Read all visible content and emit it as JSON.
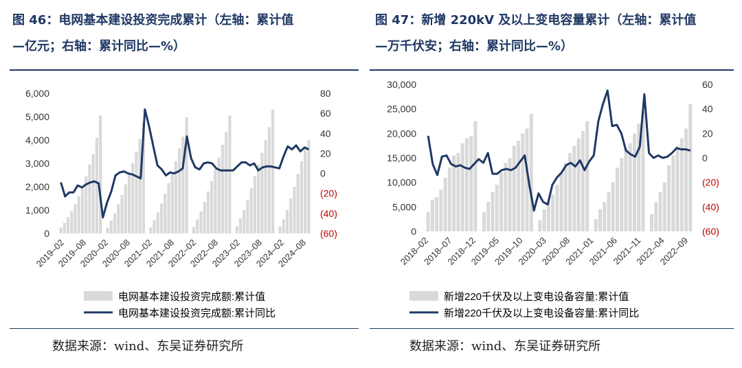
{
  "source_text": "数据来源：wind、东吴证券研究所",
  "charts": [
    {
      "title_line1": "图 46：电网基本建设投资完成累计（左轴：累计值",
      "title_line2": "—亿元；右轴：累计同比—%）"
    },
    {
      "title_line1": "图 47：新增 220kV 及以上变电容量累计（左轴：累计值",
      "title_line2": "—万千伏安；右轴：累计同比—%）"
    }
  ],
  "colors": {
    "bar": "#d9d9d9",
    "line": "#1f3864",
    "negative_tick": "#c00000",
    "title": "#1f3864"
  },
  "chart_data": [
    {
      "type": "bar+line",
      "left_ticks": [
        "0",
        "1,000",
        "2,000",
        "3,000",
        "4,000",
        "5,000",
        "6,000"
      ],
      "right_ticks": [
        "(60)",
        "(40)",
        "(20)",
        "0",
        "20",
        "40",
        "60",
        "80"
      ],
      "x_ticks": [
        "2019–02",
        "2019–08",
        "2020–02",
        "2020–08",
        "2021–02",
        "2021–08",
        "2022–02",
        "2022–08",
        "2023–02",
        "2023–08",
        "2024–02",
        "2024–08"
      ],
      "ylim_left": [
        0,
        6000
      ],
      "ylim_right": [
        -60,
        80
      ],
      "series": [
        {
          "name": "电网基本建设投资完成额:累计值",
          "axis": "left",
          "kind": "bar",
          "values": [
            250,
            450,
            700,
            950,
            1250,
            1600,
            2000,
            2450,
            2950,
            3400,
            4100,
            5050,
            null,
            250,
            550,
            850,
            1250,
            1650,
            2100,
            2550,
            3000,
            3500,
            4050,
            4750,
            null,
            260,
            560,
            900,
            1280,
            1700,
            2150,
            2600,
            3100,
            3650,
            4150,
            4980,
            null,
            280,
            600,
            950,
            1350,
            1800,
            2250,
            2750,
            3250,
            3800,
            4350,
            5050,
            null,
            300,
            650,
            1000,
            1450,
            1950,
            2450,
            2950,
            3450,
            4000,
            4550,
            5300,
            null,
            300,
            600,
            1000,
            1500,
            2000,
            2550,
            3100,
            3650,
            4000
          ]
        },
        {
          "name": "电网基本建设投资完成额:累计同比",
          "axis": "right",
          "kind": "line",
          "values": [
            -9,
            -23,
            -19,
            -19,
            -12,
            -14,
            -11,
            -9,
            -8,
            -10,
            -44,
            -29,
            -18,
            -2,
            1,
            2,
            0,
            -1,
            -3,
            -5,
            64,
            47,
            27,
            8,
            4,
            -2,
            1,
            0,
            2,
            5,
            37,
            15,
            6,
            4,
            10,
            11,
            10,
            5,
            3,
            3,
            3,
            3,
            7,
            11,
            11,
            8,
            10,
            3,
            6,
            7,
            7,
            6,
            5,
            17,
            27,
            24,
            28,
            22,
            26,
            24
          ]
        }
      ]
    },
    {
      "type": "bar+line",
      "left_ticks": [
        "0",
        "5,000",
        "10,000",
        "15,000",
        "20,000",
        "25,000",
        "30,000"
      ],
      "right_ticks": [
        "(60)",
        "(40)",
        "(20)",
        "0",
        "20",
        "40",
        "60"
      ],
      "x_ticks": [
        "2018–02",
        "2018–07",
        "2018–12",
        "2019–05",
        "2019–10",
        "2020–03",
        "2020–08",
        "2021–01",
        "2021–06",
        "2021–11",
        "2022–04",
        "2022–09"
      ],
      "ylim_left": [
        0,
        30000
      ],
      "ylim_right": [
        -60,
        60
      ],
      "series": [
        {
          "name": "新增220千伏及以上变电设备容量:累计值",
          "axis": "left",
          "kind": "bar",
          "values": [
            4000,
            6500,
            7000,
            8500,
            11000,
            13000,
            15500,
            16000,
            18000,
            19000,
            19500,
            22500,
            null,
            4000,
            6000,
            8000,
            9500,
            12000,
            14000,
            15000,
            17500,
            18500,
            20000,
            21000,
            24000,
            null,
            2300,
            4500,
            6000,
            7500,
            9500,
            12000,
            14000,
            16000,
            17500,
            19000,
            20500,
            22500,
            null,
            2500,
            4500,
            6000,
            8000,
            10000,
            13000,
            15000,
            17000,
            18000,
            20000,
            22000,
            24500,
            null,
            3500,
            6000,
            8000,
            10000,
            13500,
            15500,
            17500,
            19000,
            21000,
            26000
          ]
        },
        {
          "name": "新增220千伏及以上变电设备容量:累计同比",
          "axis": "right",
          "kind": "line",
          "values": [
            18,
            -5,
            -14,
            1,
            2,
            -5,
            -7,
            -6,
            -8,
            -9,
            -5,
            -1,
            -4,
            4,
            -13,
            -13,
            -10,
            -9,
            -10,
            -8,
            -3,
            2,
            -22,
            -43,
            -29,
            -36,
            -38,
            -22,
            -16,
            -12,
            -6,
            -4,
            -7,
            -2,
            -10,
            -3,
            2,
            30,
            44,
            55,
            26,
            27,
            20,
            6,
            3,
            1,
            9,
            52,
            4,
            0,
            2,
            0,
            1,
            4,
            8,
            7,
            7,
            6
          ]
        }
      ]
    }
  ]
}
